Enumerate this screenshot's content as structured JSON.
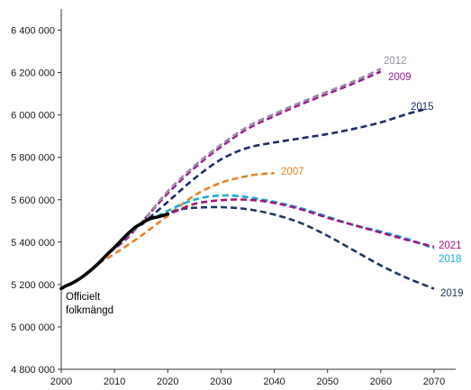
{
  "chart_data": {
    "type": "line",
    "title": "",
    "xlabel": "",
    "ylabel": "",
    "xlim": [
      2000,
      2075
    ],
    "ylim": [
      4800000,
      6500000
    ],
    "x_ticks": [
      2000,
      2010,
      2020,
      2030,
      2040,
      2050,
      2060,
      2070
    ],
    "x_tick_labels": [
      "2000",
      "2010",
      "2020",
      "2030",
      "2040",
      "2050",
      "2060",
      "2070"
    ],
    "y_ticks": [
      4800000,
      5000000,
      5200000,
      5400000,
      5600000,
      5800000,
      6000000,
      6200000,
      6400000
    ],
    "y_tick_labels": [
      "4 800 000",
      "5 000 000",
      "5 200 000",
      "5 400 000",
      "5 600 000",
      "5 800 000",
      "6 000 000",
      "6 200 000",
      "6 400 000"
    ],
    "grid": false,
    "legend": "none",
    "series": [
      {
        "name": "Officielt folkmängd",
        "label_lines": [
          "Officielt",
          "folkmängd"
        ],
        "color": "#000000",
        "style": "solid",
        "x": [
          2000,
          2001,
          2002,
          2003,
          2004,
          2005,
          2006,
          2007,
          2008,
          2009,
          2010,
          2011,
          2012,
          2013,
          2014,
          2015,
          2016,
          2017,
          2018,
          2019,
          2020
        ],
        "y": [
          5181000,
          5195000,
          5206000,
          5220000,
          5237000,
          5256000,
          5277000,
          5300000,
          5326000,
          5351000,
          5375000,
          5401000,
          5427000,
          5451000,
          5472000,
          5487000,
          5503000,
          5513000,
          5518000,
          5525000,
          5533000
        ]
      },
      {
        "name": "2007",
        "color": "#e8822a",
        "style": "dashed",
        "x": [
          2007,
          2010,
          2015,
          2020,
          2025,
          2030,
          2035,
          2038,
          2040
        ],
        "y": [
          5300000,
          5345000,
          5430000,
          5525000,
          5620000,
          5680000,
          5712000,
          5722000,
          5725000
        ]
      },
      {
        "name": "2009",
        "color": "#9b1d8e",
        "style": "dashed",
        "x": [
          2009,
          2012,
          2015,
          2020,
          2025,
          2030,
          2035,
          2040,
          2045,
          2050,
          2055,
          2060
        ],
        "y": [
          5350000,
          5410000,
          5490000,
          5630000,
          5750000,
          5850000,
          5935000,
          5995000,
          6050000,
          6100000,
          6150000,
          6205000
        ]
      },
      {
        "name": "2012",
        "color": "#9890a8",
        "style": "dashed",
        "x": [
          2012,
          2015,
          2020,
          2025,
          2030,
          2035,
          2040,
          2045,
          2050,
          2055,
          2060
        ],
        "y": [
          5420000,
          5490000,
          5640000,
          5760000,
          5860000,
          5945000,
          6005000,
          6060000,
          6110000,
          6160000,
          6218000
        ]
      },
      {
        "name": "2015",
        "color": "#1f2d6b",
        "style": "dashed",
        "x": [
          2015,
          2020,
          2025,
          2030,
          2035,
          2040,
          2045,
          2050,
          2055,
          2060,
          2065,
          2068
        ],
        "y": [
          5480000,
          5590000,
          5700000,
          5790000,
          5845000,
          5870000,
          5890000,
          5910000,
          5935000,
          5965000,
          6005000,
          6025000
        ]
      },
      {
        "name": "2018",
        "color": "#1aaadc",
        "style": "dashed",
        "x": [
          2018,
          2020,
          2025,
          2030,
          2035,
          2040,
          2045,
          2050,
          2055,
          2060,
          2065,
          2070
        ],
        "y": [
          5520000,
          5548000,
          5600000,
          5620000,
          5612000,
          5590000,
          5560000,
          5520000,
          5480000,
          5450000,
          5415000,
          5370000
        ]
      },
      {
        "name": "2019",
        "color": "#1f3864",
        "style": "dashed",
        "x": [
          2019,
          2022,
          2025,
          2030,
          2035,
          2040,
          2045,
          2050,
          2055,
          2060,
          2065,
          2070
        ],
        "y": [
          5525000,
          5552000,
          5562000,
          5565000,
          5555000,
          5530000,
          5490000,
          5430000,
          5360000,
          5290000,
          5230000,
          5180000
        ]
      },
      {
        "name": "2021",
        "color": "#a0177e",
        "style": "dashed",
        "x": [
          2021,
          2025,
          2030,
          2035,
          2040,
          2045,
          2050,
          2055,
          2060,
          2065,
          2070
        ],
        "y": [
          5540000,
          5580000,
          5598000,
          5600000,
          5585000,
          5555000,
          5515000,
          5480000,
          5445000,
          5410000,
          5378000
        ]
      }
    ]
  }
}
